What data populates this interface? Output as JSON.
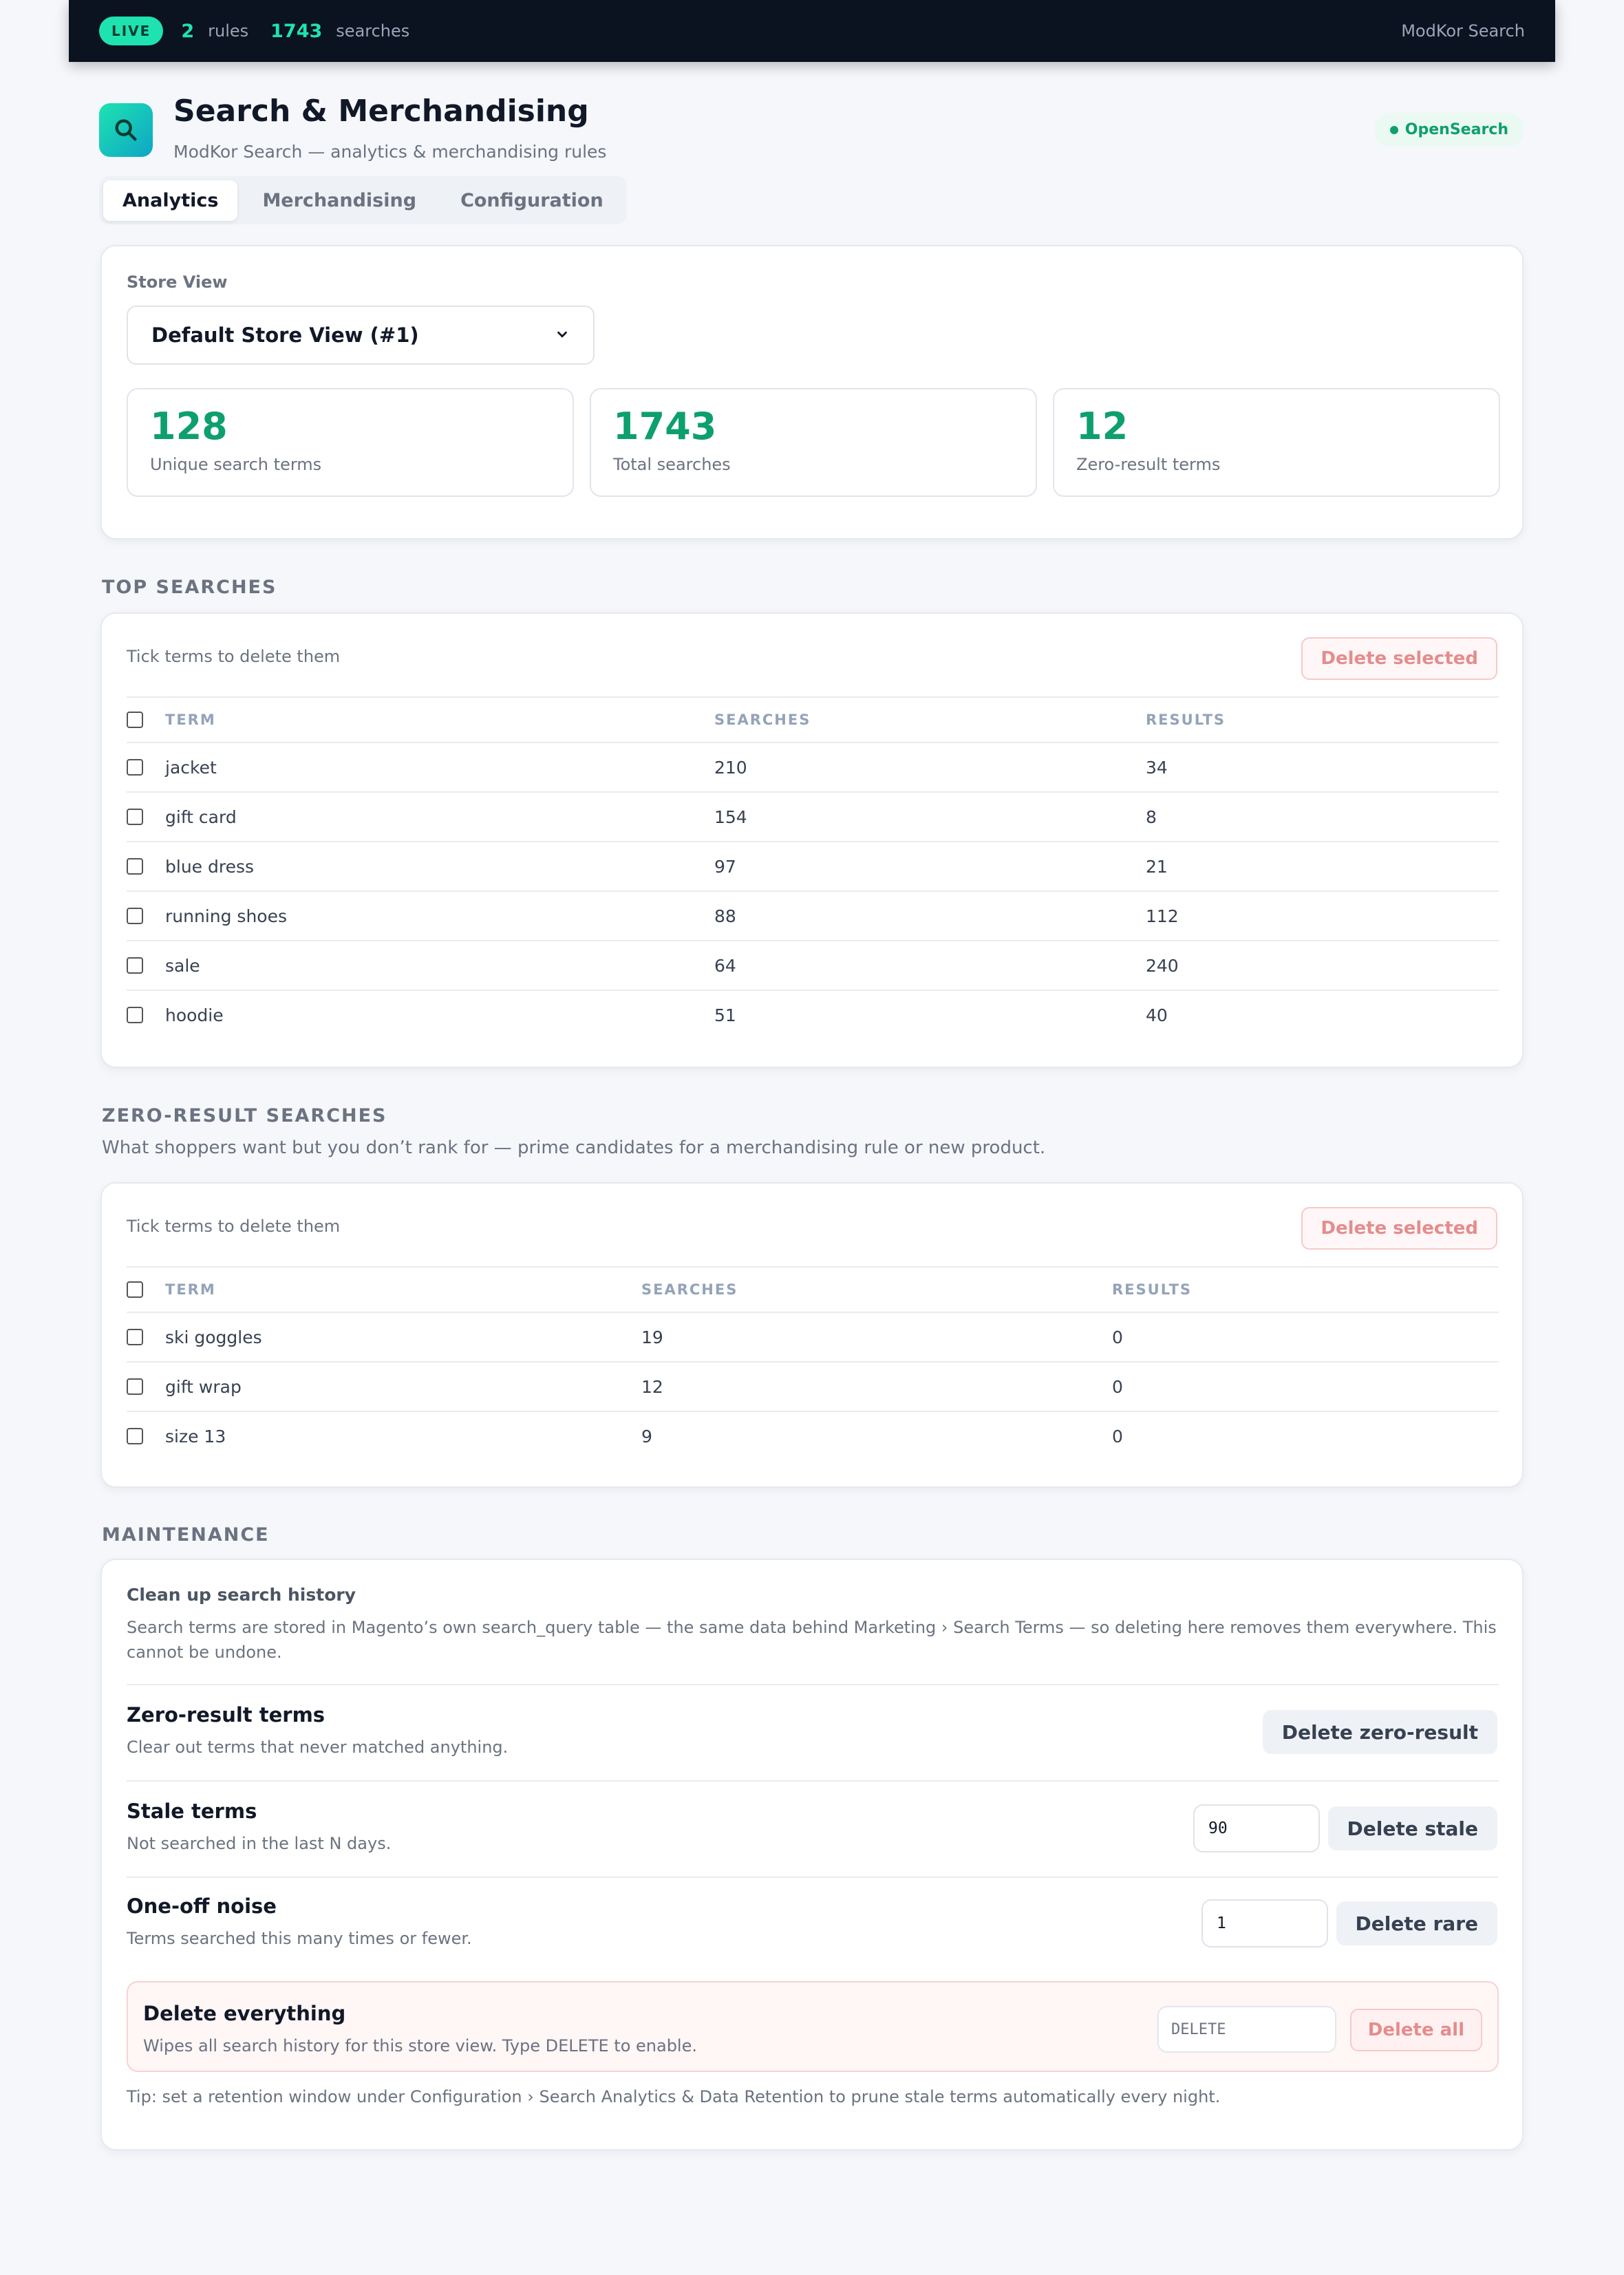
{
  "topbar": {
    "live_label": "LIVE",
    "rules_count": "2",
    "rules_label": "rules",
    "searches_count": "1743",
    "searches_label": "searches",
    "brand": "ModKor Search"
  },
  "header": {
    "title": "Search & Merchandising",
    "subtitle": "ModKor Search — analytics & merchandising rules",
    "engine_badge": "OpenSearch",
    "logo_icon": "search-magnifier-icon"
  },
  "tabs": [
    {
      "label": "Analytics",
      "active": true
    },
    {
      "label": "Merchandising",
      "active": false
    },
    {
      "label": "Configuration",
      "active": false
    }
  ],
  "store": {
    "label": "Store View",
    "selected": "Default Store View (#1)"
  },
  "stats": [
    {
      "value": "128",
      "label": "Unique search terms"
    },
    {
      "value": "1743",
      "label": "Total searches"
    },
    {
      "value": "12",
      "label": "Zero-result terms"
    }
  ],
  "top_searches": {
    "title": "TOP SEARCHES",
    "hint": "Tick terms to delete them",
    "delete_label": "Delete selected",
    "columns": [
      "TERM",
      "SEARCHES",
      "RESULTS"
    ],
    "rows": [
      {
        "term": "jacket",
        "searches": "210",
        "results": "34"
      },
      {
        "term": "gift card",
        "searches": "154",
        "results": "8"
      },
      {
        "term": "blue dress",
        "searches": "97",
        "results": "21"
      },
      {
        "term": "running shoes",
        "searches": "88",
        "results": "112"
      },
      {
        "term": "sale",
        "searches": "64",
        "results": "240"
      },
      {
        "term": "hoodie",
        "searches": "51",
        "results": "40"
      }
    ]
  },
  "zero_results": {
    "title": "ZERO-RESULT SEARCHES",
    "description": "What shoppers want but you don’t rank for — prime candidates for a merchandising rule or new product.",
    "hint": "Tick terms to delete them",
    "delete_label": "Delete selected",
    "columns": [
      "TERM",
      "SEARCHES",
      "RESULTS"
    ],
    "rows": [
      {
        "term": "ski goggles",
        "searches": "19",
        "results": "0"
      },
      {
        "term": "gift wrap",
        "searches": "12",
        "results": "0"
      },
      {
        "term": "size 13",
        "searches": "9",
        "results": "0"
      }
    ]
  },
  "maintenance": {
    "title": "MAINTENANCE",
    "cleanup_title": "Clean up search history",
    "cleanup_text": "Search terms are stored in Magento’s own search_query table — the same data behind Marketing › Search Terms — so deleting here removes them everywhere. This cannot be undone.",
    "zero": {
      "title": "Zero-result terms",
      "desc": "Clear out terms that never matched anything.",
      "button": "Delete zero-result"
    },
    "stale": {
      "title": "Stale terms",
      "desc": "Not searched in the last N days.",
      "value": "90",
      "button": "Delete stale"
    },
    "rare": {
      "title": "One-off noise",
      "desc": "Terms searched this many times or fewer.",
      "value": "1",
      "button": "Delete rare"
    },
    "all": {
      "title": "Delete everything",
      "desc": "Wipes all search history for this store view. Type DELETE to enable.",
      "placeholder": "DELETE",
      "button": "Delete all"
    },
    "tip": "Tip: set a retention window under Configuration › Search Analytics & Data Retention to prune stale terms automatically every night."
  },
  "colors": {
    "accent": "#1ee3b0",
    "topbar_bg": "#0b1220",
    "stat_value": "#0e9f6e",
    "danger": "#e58c8c"
  }
}
